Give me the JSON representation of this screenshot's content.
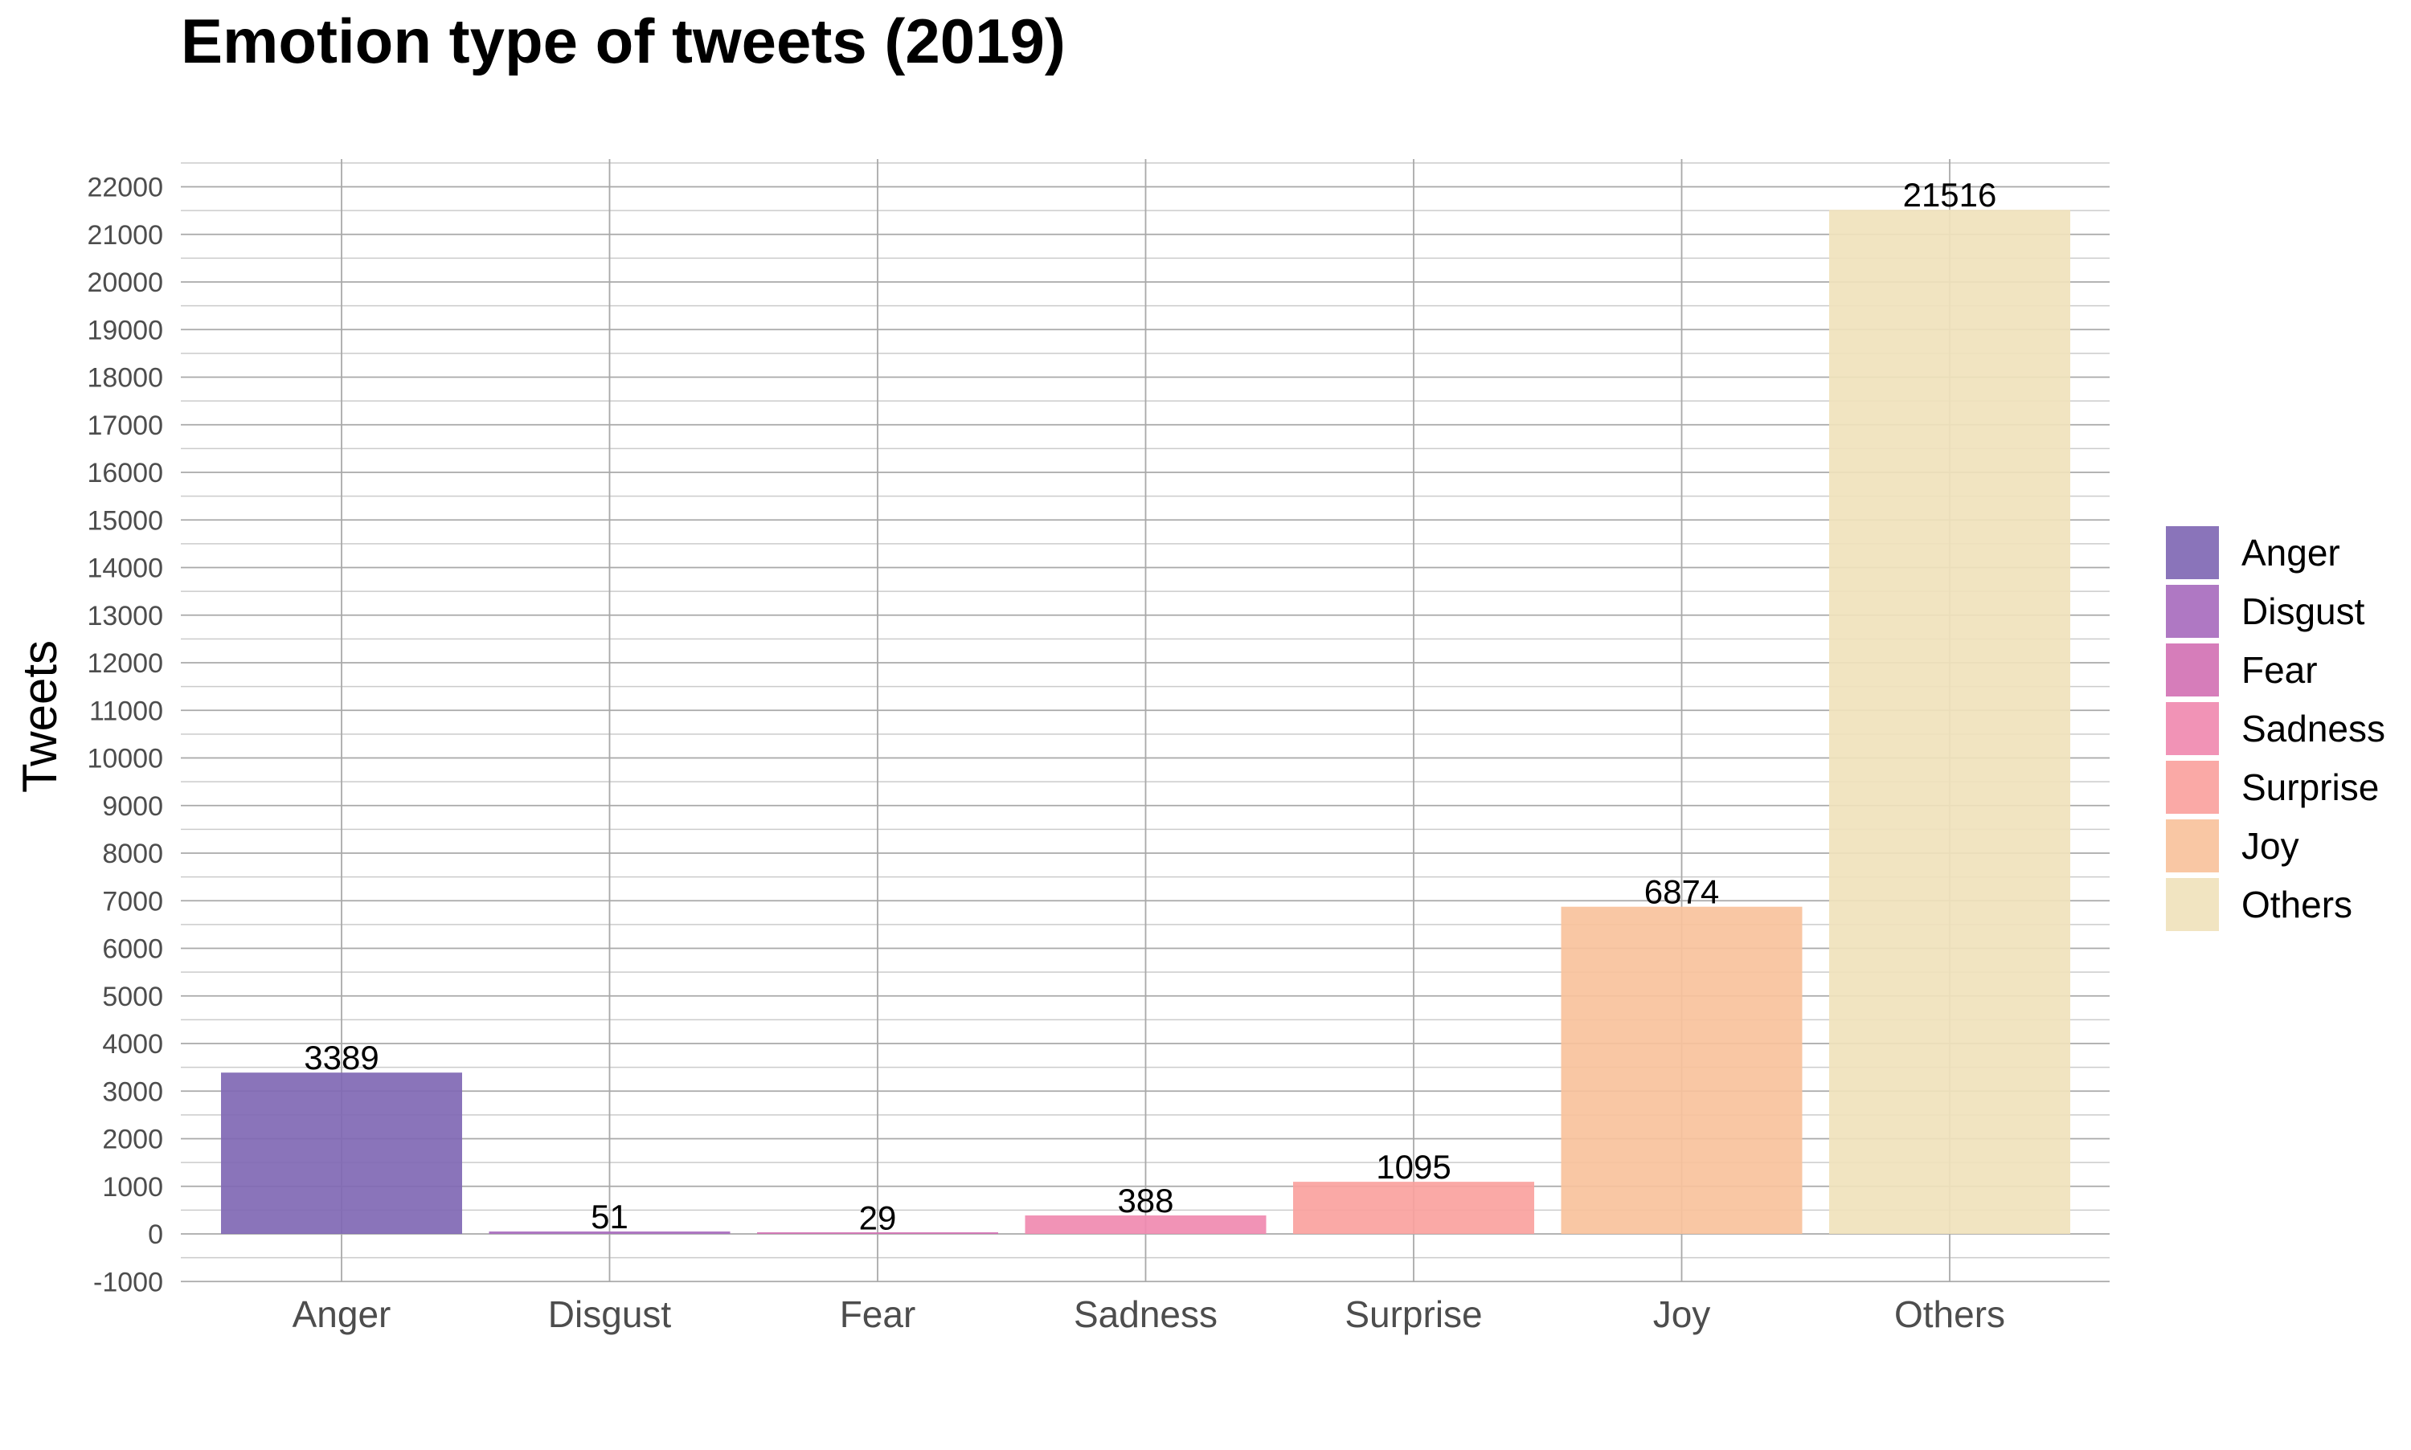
{
  "chart_data": {
    "type": "bar",
    "title": "Emotion type of tweets (2019)",
    "xlabel": "",
    "ylabel": "Tweets",
    "categories": [
      "Anger",
      "Disgust",
      "Fear",
      "Sadness",
      "Surprise",
      "Joy",
      "Others"
    ],
    "values": [
      3389,
      51,
      29,
      388,
      1095,
      6874,
      21516
    ],
    "data_labels": [
      "3389",
      "51",
      "29",
      "388",
      "1095",
      "6874",
      "21516"
    ],
    "colors": [
      "#8068b4",
      "#a86cbe",
      "#d272b4",
      "#f08ab0",
      "#faa29e",
      "#f8c29c",
      "#f0e2bc"
    ],
    "ylim": [
      -1000,
      22500
    ],
    "yticks": [
      -1000,
      0,
      1000,
      2000,
      3000,
      4000,
      5000,
      6000,
      7000,
      8000,
      9000,
      10000,
      11000,
      12000,
      13000,
      14000,
      15000,
      16000,
      17000,
      18000,
      19000,
      20000,
      21000,
      22000
    ],
    "ytick_labels": [
      "-1000",
      "0",
      "1000",
      "2000",
      "3000",
      "4000",
      "5000",
      "6000",
      "7000",
      "8000",
      "9000",
      "10000",
      "11000",
      "12000",
      "13000",
      "14000",
      "15000",
      "16000",
      "17000",
      "18000",
      "19000",
      "20000",
      "21000",
      "22000"
    ],
    "grid": true,
    "legend": {
      "position": "right",
      "entries": [
        "Anger",
        "Disgust",
        "Fear",
        "Sadness",
        "Surprise",
        "Joy",
        "Others"
      ]
    }
  }
}
